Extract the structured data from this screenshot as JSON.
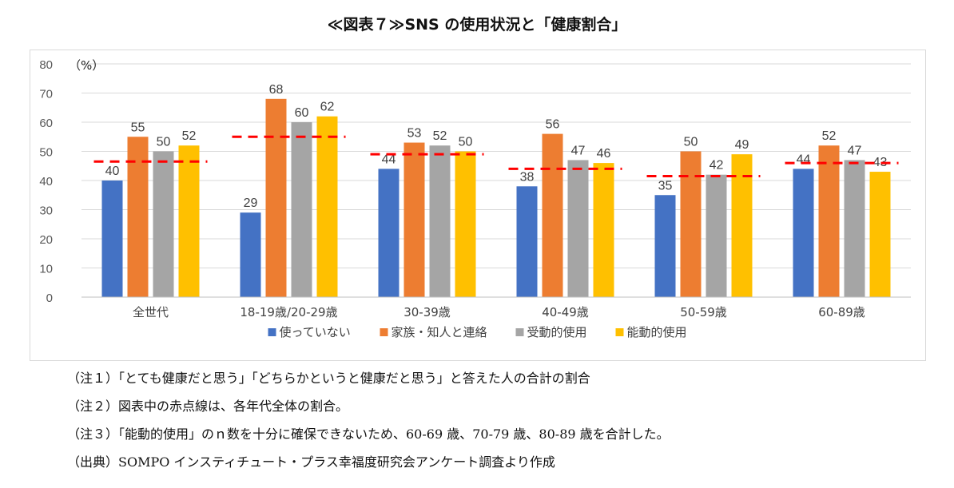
{
  "title": "≪図表７≫SNS の使用状況と「健康割合」",
  "unit_label": "（%）",
  "chart_data": {
    "type": "bar",
    "ylim": [
      0,
      80
    ],
    "yticks": [
      0,
      10,
      20,
      30,
      40,
      50,
      60,
      70,
      80
    ],
    "grid": true,
    "legend_position": "bottom",
    "categories": [
      "全世代",
      "18-19歳/20-29歳",
      "30-39歳",
      "40-49歳",
      "50-59歳",
      "60-89歳"
    ],
    "series": [
      {
        "name": "使っていない",
        "color": "#4472c4",
        "values": [
          40,
          29,
          44,
          38,
          35,
          44
        ],
        "labels": [
          "40",
          "29",
          "44",
          "38",
          "35",
          "44"
        ]
      },
      {
        "name": "家族・知人と連絡",
        "color": "#ed7d31",
        "values": [
          55,
          68,
          53,
          56,
          50,
          52
        ],
        "labels": [
          "55",
          "68",
          "53",
          "56",
          "50",
          "52"
        ]
      },
      {
        "name": "受動的使用",
        "color": "#a5a5a5",
        "values": [
          50,
          60,
          52,
          47,
          42,
          47
        ],
        "labels": [
          "50",
          "60",
          "52",
          "47",
          "42",
          "47"
        ]
      },
      {
        "name": "能動的使用",
        "color": "#ffc000",
        "values": [
          52,
          62,
          50,
          46,
          49,
          43
        ],
        "labels": [
          "52",
          "62",
          "50",
          "46",
          "49",
          "43"
        ]
      }
    ],
    "reference_line": {
      "color": "#ff0000",
      "values": [
        46.5,
        55,
        49,
        44,
        41.5,
        46
      ]
    }
  },
  "notes": [
    "（注１）「とても健康だと思う」「どちらかというと健康だと思う」と答えた人の合計の割合",
    "（注２）図表中の赤点線は、各年代全体の割合。",
    "（注３）「能動的使用」のｎ数を十分に確保できないため、60-69 歳、70-79 歳、80-89 歳を合計した。",
    "（出典）SOMPO インスティチュート・プラス幸福度研究会アンケート調査より作成"
  ]
}
